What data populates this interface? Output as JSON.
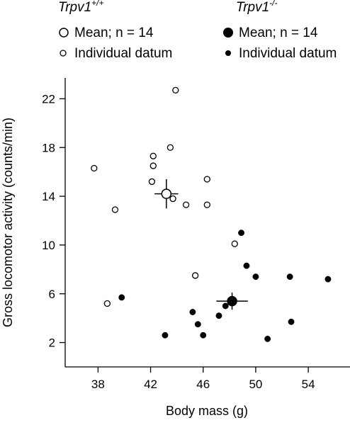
{
  "chart_data": {
    "type": "scatter",
    "xlabel": "Body mass (g)",
    "ylabel": "Gross locomotor activity (counts/min)",
    "xlim": [
      35.5,
      56.5
    ],
    "ylim": [
      0,
      24
    ],
    "xticks": [
      "38",
      "42",
      "46",
      "50",
      "54"
    ],
    "yticks": [
      "2",
      "6",
      "10",
      "14",
      "18",
      "22"
    ],
    "legend": {
      "placement": "top",
      "groups": [
        {
          "genotype": "Trpv1",
          "superscript": "+/+",
          "mean_label": "Mean; n = 14",
          "datum_label": "Individual datum"
        },
        {
          "genotype": "Trpv1",
          "superscript": "-/-",
          "mean_label": "Mean; n = 14",
          "datum_label": "Individual datum"
        }
      ]
    },
    "series": [
      {
        "group": "Trpv1+/+",
        "marker": "open",
        "points": [
          {
            "x": 37.7,
            "y": 16.3
          },
          {
            "x": 38.7,
            "y": 5.2
          },
          {
            "x": 39.3,
            "y": 12.9
          },
          {
            "x": 42.2,
            "y": 17.3
          },
          {
            "x": 42.2,
            "y": 16.5
          },
          {
            "x": 42.1,
            "y": 15.2
          },
          {
            "x": 43.5,
            "y": 18.0
          },
          {
            "x": 43.9,
            "y": 22.7
          },
          {
            "x": 43.7,
            "y": 13.8
          },
          {
            "x": 44.7,
            "y": 13.3
          },
          {
            "x": 46.3,
            "y": 15.4
          },
          {
            "x": 46.3,
            "y": 13.3
          },
          {
            "x": 48.4,
            "y": 10.1
          },
          {
            "x": 45.4,
            "y": 7.5
          }
        ],
        "mean": {
          "x": 43.2,
          "y": 14.2,
          "xerr": 0.9,
          "yerr": 1.2
        }
      },
      {
        "group": "Trpv1-/-",
        "marker": "filled",
        "points": [
          {
            "x": 39.8,
            "y": 5.7
          },
          {
            "x": 43.1,
            "y": 2.6
          },
          {
            "x": 45.2,
            "y": 4.5
          },
          {
            "x": 45.6,
            "y": 3.5
          },
          {
            "x": 46.0,
            "y": 2.6
          },
          {
            "x": 47.2,
            "y": 4.2
          },
          {
            "x": 47.7,
            "y": 5.0
          },
          {
            "x": 48.9,
            "y": 11.0
          },
          {
            "x": 49.3,
            "y": 8.3
          },
          {
            "x": 50.0,
            "y": 7.4
          },
          {
            "x": 50.9,
            "y": 2.3
          },
          {
            "x": 52.6,
            "y": 7.4
          },
          {
            "x": 52.7,
            "y": 3.7
          },
          {
            "x": 55.5,
            "y": 7.2
          }
        ],
        "mean": {
          "x": 48.2,
          "y": 5.4,
          "xerr": 1.2,
          "yerr": 0.7
        }
      }
    ]
  }
}
